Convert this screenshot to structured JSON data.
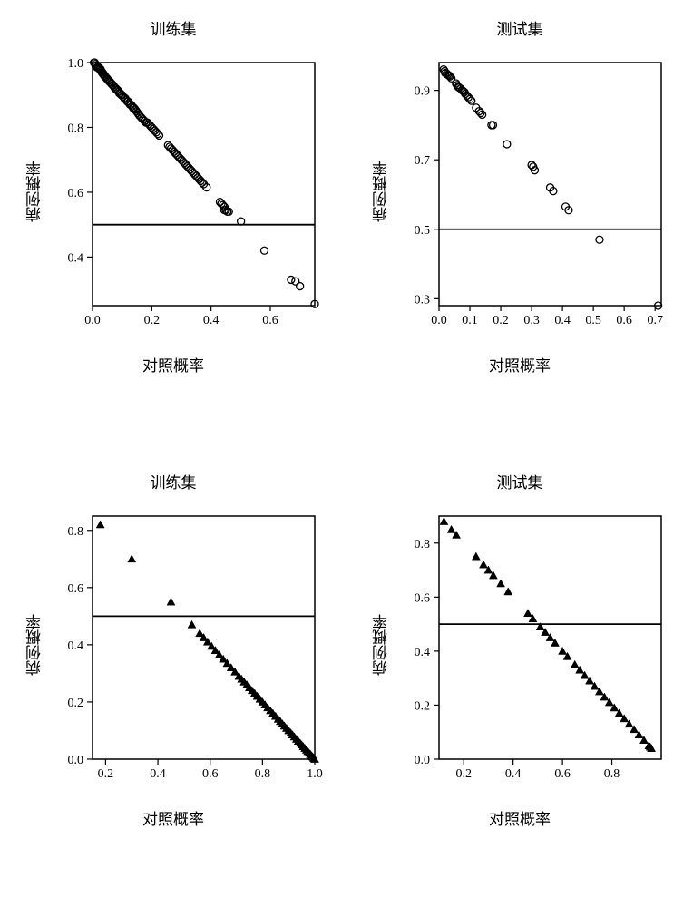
{
  "panels": [
    {
      "id": "top-left",
      "title": "训练集",
      "xlabel": "对照概率",
      "ylabel": "病例概率",
      "type": "scatter",
      "marker": "circle",
      "marker_fill": "none",
      "marker_stroke": "#000000",
      "marker_size": 4.0,
      "background_color": "#ffffff",
      "axis_color": "#000000",
      "tick_fontsize": 14,
      "label_fontsize": 17,
      "title_fontsize": 17,
      "xlim": [
        0.0,
        0.75
      ],
      "ylim": [
        0.25,
        1.0
      ],
      "xticks": [
        0.0,
        0.2,
        0.4,
        0.6
      ],
      "yticks": [
        0.4,
        0.6,
        0.8,
        1.0
      ],
      "hline": 0.5,
      "points": [
        [
          0.005,
          1.0
        ],
        [
          0.007,
          1.0
        ],
        [
          0.009,
          0.995
        ],
        [
          0.011,
          0.99
        ],
        [
          0.013,
          0.99
        ],
        [
          0.015,
          0.985
        ],
        [
          0.017,
          0.985
        ],
        [
          0.019,
          0.985
        ],
        [
          0.021,
          0.985
        ],
        [
          0.023,
          0.98
        ],
        [
          0.025,
          0.98
        ],
        [
          0.027,
          0.98
        ],
        [
          0.029,
          0.975
        ],
        [
          0.031,
          0.97
        ],
        [
          0.033,
          0.97
        ],
        [
          0.035,
          0.965
        ],
        [
          0.037,
          0.965
        ],
        [
          0.039,
          0.96
        ],
        [
          0.041,
          0.96
        ],
        [
          0.043,
          0.955
        ],
        [
          0.045,
          0.955
        ],
        [
          0.048,
          0.95
        ],
        [
          0.05,
          0.95
        ],
        [
          0.053,
          0.945
        ],
        [
          0.055,
          0.945
        ],
        [
          0.058,
          0.94
        ],
        [
          0.06,
          0.94
        ],
        [
          0.063,
          0.935
        ],
        [
          0.065,
          0.935
        ],
        [
          0.068,
          0.93
        ],
        [
          0.07,
          0.93
        ],
        [
          0.073,
          0.925
        ],
        [
          0.076,
          0.92
        ],
        [
          0.079,
          0.92
        ],
        [
          0.082,
          0.915
        ],
        [
          0.085,
          0.915
        ],
        [
          0.088,
          0.91
        ],
        [
          0.091,
          0.905
        ],
        [
          0.094,
          0.905
        ],
        [
          0.097,
          0.9
        ],
        [
          0.1,
          0.9
        ],
        [
          0.103,
          0.895
        ],
        [
          0.107,
          0.89
        ],
        [
          0.11,
          0.89
        ],
        [
          0.113,
          0.885
        ],
        [
          0.117,
          0.88
        ],
        [
          0.12,
          0.88
        ],
        [
          0.123,
          0.875
        ],
        [
          0.127,
          0.87
        ],
        [
          0.13,
          0.87
        ],
        [
          0.134,
          0.865
        ],
        [
          0.137,
          0.86
        ],
        [
          0.14,
          0.86
        ],
        [
          0.144,
          0.855
        ],
        [
          0.148,
          0.85
        ],
        [
          0.152,
          0.845
        ],
        [
          0.156,
          0.84
        ],
        [
          0.16,
          0.835
        ],
        [
          0.165,
          0.83
        ],
        [
          0.17,
          0.825
        ],
        [
          0.175,
          0.82
        ],
        [
          0.18,
          0.815
        ],
        [
          0.185,
          0.815
        ],
        [
          0.19,
          0.81
        ],
        [
          0.195,
          0.805
        ],
        [
          0.2,
          0.8
        ],
        [
          0.205,
          0.795
        ],
        [
          0.21,
          0.79
        ],
        [
          0.215,
          0.785
        ],
        [
          0.22,
          0.78
        ],
        [
          0.225,
          0.775
        ],
        [
          0.255,
          0.745
        ],
        [
          0.26,
          0.74
        ],
        [
          0.265,
          0.735
        ],
        [
          0.27,
          0.73
        ],
        [
          0.275,
          0.725
        ],
        [
          0.28,
          0.72
        ],
        [
          0.285,
          0.715
        ],
        [
          0.29,
          0.71
        ],
        [
          0.295,
          0.705
        ],
        [
          0.3,
          0.7
        ],
        [
          0.305,
          0.695
        ],
        [
          0.31,
          0.69
        ],
        [
          0.315,
          0.685
        ],
        [
          0.32,
          0.68
        ],
        [
          0.325,
          0.675
        ],
        [
          0.33,
          0.67
        ],
        [
          0.335,
          0.665
        ],
        [
          0.34,
          0.66
        ],
        [
          0.345,
          0.655
        ],
        [
          0.35,
          0.65
        ],
        [
          0.355,
          0.645
        ],
        [
          0.36,
          0.64
        ],
        [
          0.365,
          0.635
        ],
        [
          0.37,
          0.63
        ],
        [
          0.375,
          0.625
        ],
        [
          0.385,
          0.615
        ],
        [
          0.43,
          0.57
        ],
        [
          0.435,
          0.565
        ],
        [
          0.44,
          0.56
        ],
        [
          0.445,
          0.555
        ],
        [
          0.445,
          0.545
        ],
        [
          0.45,
          0.545
        ],
        [
          0.455,
          0.54
        ],
        [
          0.46,
          0.54
        ],
        [
          0.501,
          0.51
        ],
        [
          0.58,
          0.42
        ],
        [
          0.67,
          0.33
        ],
        [
          0.685,
          0.325
        ],
        [
          0.7,
          0.31
        ],
        [
          0.75,
          0.255
        ]
      ]
    },
    {
      "id": "top-right",
      "title": "测试集",
      "xlabel": "对照概率",
      "ylabel": "病例概率",
      "type": "scatter",
      "marker": "circle",
      "marker_fill": "none",
      "marker_stroke": "#000000",
      "marker_size": 4.0,
      "background_color": "#ffffff",
      "axis_color": "#000000",
      "tick_fontsize": 14,
      "label_fontsize": 17,
      "title_fontsize": 17,
      "xlim": [
        0.0,
        0.72
      ],
      "ylim": [
        0.28,
        0.98
      ],
      "xticks": [
        0.0,
        0.1,
        0.2,
        0.3,
        0.4,
        0.5,
        0.6,
        0.7
      ],
      "yticks": [
        0.3,
        0.5,
        0.7,
        0.9
      ],
      "hline": 0.5,
      "points": [
        [
          0.015,
          0.96
        ],
        [
          0.018,
          0.955
        ],
        [
          0.02,
          0.95
        ],
        [
          0.025,
          0.948
        ],
        [
          0.028,
          0.945
        ],
        [
          0.032,
          0.943
        ],
        [
          0.035,
          0.94
        ],
        [
          0.04,
          0.935
        ],
        [
          0.055,
          0.92
        ],
        [
          0.058,
          0.915
        ],
        [
          0.062,
          0.91
        ],
        [
          0.065,
          0.908
        ],
        [
          0.07,
          0.905
        ],
        [
          0.075,
          0.9
        ],
        [
          0.078,
          0.898
        ],
        [
          0.082,
          0.895
        ],
        [
          0.085,
          0.89
        ],
        [
          0.09,
          0.885
        ],
        [
          0.095,
          0.88
        ],
        [
          0.1,
          0.875
        ],
        [
          0.105,
          0.87
        ],
        [
          0.12,
          0.85
        ],
        [
          0.13,
          0.84
        ],
        [
          0.135,
          0.835
        ],
        [
          0.14,
          0.83
        ],
        [
          0.17,
          0.8
        ],
        [
          0.175,
          0.8
        ],
        [
          0.22,
          0.745
        ],
        [
          0.3,
          0.685
        ],
        [
          0.31,
          0.67
        ],
        [
          0.305,
          0.68
        ],
        [
          0.36,
          0.62
        ],
        [
          0.37,
          0.61
        ],
        [
          0.41,
          0.565
        ],
        [
          0.42,
          0.555
        ],
        [
          0.52,
          0.47
        ],
        [
          0.71,
          0.28
        ]
      ]
    },
    {
      "id": "bottom-left",
      "title": "训练集",
      "xlabel": "对照概率",
      "ylabel": "病例概率",
      "type": "scatter",
      "marker": "triangle",
      "marker_fill": "#000000",
      "marker_stroke": "#000000",
      "marker_size": 4.5,
      "background_color": "#ffffff",
      "axis_color": "#000000",
      "tick_fontsize": 14,
      "label_fontsize": 17,
      "title_fontsize": 17,
      "xlim": [
        0.15,
        1.0
      ],
      "ylim": [
        0.0,
        0.85
      ],
      "xticks": [
        0.2,
        0.4,
        0.6,
        0.8,
        1.0
      ],
      "yticks": [
        0.0,
        0.2,
        0.4,
        0.6,
        0.8
      ],
      "hline": 0.5,
      "points": [
        [
          0.18,
          0.82
        ],
        [
          0.3,
          0.7
        ],
        [
          0.45,
          0.55
        ],
        [
          0.53,
          0.47
        ],
        [
          0.56,
          0.44
        ],
        [
          0.575,
          0.425
        ],
        [
          0.59,
          0.41
        ],
        [
          0.605,
          0.395
        ],
        [
          0.62,
          0.38
        ],
        [
          0.635,
          0.365
        ],
        [
          0.65,
          0.35
        ],
        [
          0.665,
          0.335
        ],
        [
          0.68,
          0.32
        ],
        [
          0.695,
          0.305
        ],
        [
          0.71,
          0.29
        ],
        [
          0.72,
          0.28
        ],
        [
          0.73,
          0.27
        ],
        [
          0.74,
          0.26
        ],
        [
          0.75,
          0.25
        ],
        [
          0.76,
          0.24
        ],
        [
          0.77,
          0.23
        ],
        [
          0.78,
          0.22
        ],
        [
          0.79,
          0.21
        ],
        [
          0.8,
          0.2
        ],
        [
          0.81,
          0.19
        ],
        [
          0.82,
          0.18
        ],
        [
          0.83,
          0.17
        ],
        [
          0.84,
          0.16
        ],
        [
          0.85,
          0.15
        ],
        [
          0.86,
          0.14
        ],
        [
          0.868,
          0.132
        ],
        [
          0.876,
          0.124
        ],
        [
          0.884,
          0.116
        ],
        [
          0.892,
          0.108
        ],
        [
          0.9,
          0.1
        ],
        [
          0.908,
          0.092
        ],
        [
          0.915,
          0.085
        ],
        [
          0.922,
          0.078
        ],
        [
          0.93,
          0.07
        ],
        [
          0.937,
          0.063
        ],
        [
          0.944,
          0.056
        ],
        [
          0.95,
          0.05
        ],
        [
          0.956,
          0.044
        ],
        [
          0.962,
          0.038
        ],
        [
          0.968,
          0.032
        ],
        [
          0.973,
          0.027
        ],
        [
          0.978,
          0.022
        ],
        [
          0.983,
          0.017
        ],
        [
          0.988,
          0.012
        ],
        [
          0.992,
          0.008
        ],
        [
          0.996,
          0.004
        ],
        [
          0.998,
          0.002
        ],
        [
          1.0,
          0.0
        ]
      ]
    },
    {
      "id": "bottom-right",
      "title": "测试集",
      "xlabel": "对照概率",
      "ylabel": "病例概率",
      "type": "scatter",
      "marker": "triangle",
      "marker_fill": "#000000",
      "marker_stroke": "#000000",
      "marker_size": 4.5,
      "background_color": "#ffffff",
      "axis_color": "#000000",
      "tick_fontsize": 14,
      "label_fontsize": 17,
      "title_fontsize": 17,
      "xlim": [
        0.1,
        1.0
      ],
      "ylim": [
        0.0,
        0.9
      ],
      "xticks": [
        0.2,
        0.4,
        0.6,
        0.8
      ],
      "yticks": [
        0.0,
        0.2,
        0.4,
        0.6,
        0.8
      ],
      "hline": 0.5,
      "points": [
        [
          0.12,
          0.88
        ],
        [
          0.15,
          0.85
        ],
        [
          0.17,
          0.83
        ],
        [
          0.25,
          0.75
        ],
        [
          0.28,
          0.72
        ],
        [
          0.3,
          0.7
        ],
        [
          0.32,
          0.68
        ],
        [
          0.35,
          0.65
        ],
        [
          0.38,
          0.62
        ],
        [
          0.46,
          0.54
        ],
        [
          0.48,
          0.52
        ],
        [
          0.51,
          0.49
        ],
        [
          0.53,
          0.47
        ],
        [
          0.55,
          0.45
        ],
        [
          0.57,
          0.43
        ],
        [
          0.6,
          0.4
        ],
        [
          0.62,
          0.38
        ],
        [
          0.65,
          0.35
        ],
        [
          0.67,
          0.33
        ],
        [
          0.69,
          0.31
        ],
        [
          0.71,
          0.29
        ],
        [
          0.73,
          0.27
        ],
        [
          0.75,
          0.25
        ],
        [
          0.77,
          0.23
        ],
        [
          0.79,
          0.21
        ],
        [
          0.81,
          0.19
        ],
        [
          0.83,
          0.17
        ],
        [
          0.85,
          0.15
        ],
        [
          0.87,
          0.13
        ],
        [
          0.89,
          0.11
        ],
        [
          0.91,
          0.09
        ],
        [
          0.93,
          0.07
        ],
        [
          0.95,
          0.05
        ],
        [
          0.955,
          0.045
        ],
        [
          0.96,
          0.04
        ]
      ]
    }
  ]
}
